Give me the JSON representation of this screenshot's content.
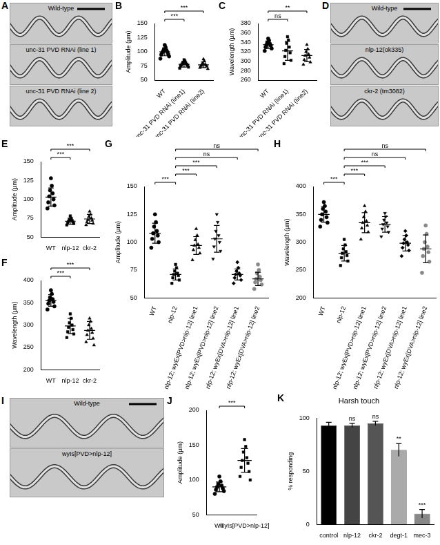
{
  "image_panels": [
    {
      "panel": "A",
      "labels": [
        "Wild-type",
        "unc-31 PVD RNAi (line 1)",
        "unc-31 PVD RNAi (line 2)"
      ]
    },
    {
      "panel": "D",
      "labels": [
        "Wild-type",
        "nlp-12(ok335)",
        "ckr-2 (tm3082)"
      ]
    },
    {
      "panel": "I",
      "labels": [
        "Wild-type",
        "wyIs[PVD>nlp-12]"
      ]
    }
  ],
  "chart_data": [
    {
      "panel": "B",
      "type": "dot_plot",
      "y_label": "Amplitude (µm)",
      "categories": [
        "WT",
        "unc-31 PVD RNAi (line1)",
        "unc-31 PVD RNAi (line2)"
      ],
      "ylim": [
        50,
        150
      ],
      "yticks": [
        50,
        75,
        100,
        125,
        150
      ],
      "points": [
        [
          112,
          108,
          104,
          103,
          101,
          100,
          98,
          96,
          95,
          92,
          88
        ],
        [
          86,
          84,
          81,
          80,
          79,
          78,
          77,
          76,
          75,
          73,
          71
        ],
        [
          87,
          84,
          80,
          78,
          77,
          76,
          75,
          74,
          72,
          70
        ]
      ],
      "means": [
        100,
        78,
        77
      ],
      "sds": [
        7,
        5,
        5
      ],
      "markers": [
        "circle",
        "square",
        "triangle"
      ],
      "colors": [
        "#000000",
        "#000000",
        "#000000"
      ],
      "comparisons": [
        {
          "from": 0,
          "to": 1,
          "label": "***"
        },
        {
          "from": 0,
          "to": 2,
          "label": "***"
        }
      ]
    },
    {
      "panel": "C",
      "type": "dot_plot",
      "y_label": "Wavelength (µm)",
      "categories": [
        "WT",
        "unc-31 PVD RNAi (line1)",
        "unc-31 PVD RNAi (line2)"
      ],
      "ylim": [
        260,
        380
      ],
      "yticks": [
        260,
        280,
        300,
        320,
        340,
        360,
        380
      ],
      "points": [
        [
          348,
          344,
          340,
          337,
          335,
          333,
          330,
          327,
          322
        ],
        [
          352,
          345,
          338,
          330,
          323,
          318,
          310,
          302,
          295
        ],
        [
          335,
          326,
          320,
          315,
          312,
          308,
          303,
          298,
          293
        ]
      ],
      "means": [
        335,
        322,
        312
      ],
      "sds": [
        8,
        20,
        13
      ],
      "markers": [
        "circle",
        "square",
        "triangle"
      ],
      "colors": [
        "#000000",
        "#000000",
        "#000000"
      ],
      "comparisons": [
        {
          "from": 0,
          "to": 1,
          "label": "ns"
        },
        {
          "from": 0,
          "to": 2,
          "label": "**"
        }
      ]
    },
    {
      "panel": "E",
      "type": "dot_plot",
      "y_label": "Amplitude (µm)",
      "categories": [
        "WT",
        "nlp-12",
        "ckr-2"
      ],
      "ylim": [
        50,
        150
      ],
      "yticks": [
        50,
        75,
        100,
        125,
        150
      ],
      "points": [
        [
          128,
          118,
          112,
          108,
          104,
          100,
          96,
          92,
          88
        ],
        [
          78,
          75,
          73,
          72,
          71,
          70,
          69,
          68,
          66
        ],
        [
          84,
          80,
          77,
          75,
          73,
          72,
          70,
          68,
          66
        ]
      ],
      "means": [
        103,
        71,
        74
      ],
      "sds": [
        12,
        4,
        6
      ],
      "markers": [
        "circle",
        "square",
        "triangle"
      ],
      "colors": [
        "#000000",
        "#000000",
        "#000000"
      ],
      "comparisons": [
        {
          "from": 0,
          "to": 1,
          "label": "***"
        },
        {
          "from": 0,
          "to": 2,
          "label": "***"
        }
      ]
    },
    {
      "panel": "F",
      "type": "dot_plot",
      "y_label": "Wavelength (µm)",
      "categories": [
        "WT",
        "nlp-12",
        "ckr-2"
      ],
      "ylim": [
        200,
        400
      ],
      "yticks": [
        200,
        250,
        300,
        350,
        400
      ],
      "points": [
        [
          378,
          370,
          362,
          358,
          355,
          352,
          348,
          342,
          335
        ],
        [
          325,
          315,
          305,
          300,
          295,
          290,
          285,
          280,
          272
        ],
        [
          315,
          308,
          300,
          292,
          288,
          283,
          278,
          270,
          262,
          255
        ]
      ],
      "means": [
        355,
        298,
        288
      ],
      "sds": [
        13,
        17,
        20
      ],
      "markers": [
        "circle",
        "square",
        "triangle"
      ],
      "colors": [
        "#000000",
        "#000000",
        "#000000"
      ],
      "comparisons": [
        {
          "from": 0,
          "to": 1,
          "label": "***"
        },
        {
          "from": 0,
          "to": 2,
          "label": "***"
        }
      ]
    },
    {
      "panel": "G",
      "type": "dot_plot",
      "y_label": "Amplitude (µm)",
      "categories": [
        "WT",
        "nlp-12",
        "nlp-12; wyEx[PVD>nlp-12] line1",
        "nlp-12; wyEx[PVD>nlp-12] line2",
        "nlp-12; wyEx[DVA>nlp-12] line1",
        "nlp-12; wyEx[DVA>nlp-12] line2"
      ],
      "ylim": [
        50,
        150
      ],
      "yticks": [
        50,
        75,
        100,
        125,
        150
      ],
      "points": [
        [
          125,
          118,
          114,
          110,
          108,
          106,
          103,
          100,
          95
        ],
        [
          80,
          77,
          74,
          72,
          71,
          70,
          68,
          66,
          63
        ],
        [
          112,
          106,
          102,
          98,
          97,
          95,
          93,
          90,
          84
        ],
        [
          125,
          118,
          110,
          106,
          103,
          100,
          96,
          92,
          85
        ],
        [
          82,
          77,
          74,
          72,
          71,
          70,
          68,
          66,
          63
        ],
        [
          80,
          75,
          72,
          69,
          67,
          66,
          64,
          62,
          58
        ]
      ],
      "means": [
        108,
        71,
        97,
        103,
        71,
        67
      ],
      "sds": [
        9,
        5,
        8,
        12,
        5,
        6
      ],
      "markers": [
        "circle",
        "square",
        "triangle",
        "triangle_down",
        "diamond",
        "circle"
      ],
      "colors": [
        "#000000",
        "#000000",
        "#000000",
        "#000000",
        "#000000",
        "#888888"
      ],
      "comparisons": [
        {
          "from": 0,
          "to": 1,
          "label": "***"
        },
        {
          "from": 1,
          "to": 2,
          "label": "***"
        },
        {
          "from": 1,
          "to": 3,
          "label": "***"
        },
        {
          "from": 1,
          "to": 4,
          "label": "ns"
        },
        {
          "from": 1,
          "to": 5,
          "label": "ns"
        }
      ]
    },
    {
      "panel": "H",
      "type": "dot_plot",
      "y_label": "Wavelength (µm)",
      "categories": [
        "WT",
        "nlp-12",
        "nlp-12; wyEx[PVD>nlp-12] line1",
        "nlp-12; wyEx[PVD>nlp-12] line2",
        "nlp-12; wyEx[DVA>nlp-12] line1",
        "nlp-12; wyEx[DVA>nlp-12] line2"
      ],
      "ylim": [
        200,
        400
      ],
      "yticks": [
        200,
        250,
        300,
        350,
        400
      ],
      "points": [
        [
          372,
          365,
          360,
          355,
          350,
          345,
          340,
          335,
          328
        ],
        [
          305,
          295,
          288,
          283,
          280,
          276,
          272,
          266,
          258
        ],
        [
          365,
          355,
          345,
          338,
          335,
          330,
          325,
          318,
          305
        ],
        [
          352,
          346,
          340,
          335,
          332,
          328,
          324,
          318,
          310
        ],
        [
          320,
          312,
          305,
          300,
          298,
          295,
          290,
          285,
          275
        ],
        [
          330,
          315,
          300,
          292,
          288,
          282,
          275,
          265,
          245
        ]
      ],
      "means": [
        350,
        280,
        335,
        332,
        298,
        288
      ],
      "sds": [
        14,
        14,
        18,
        14,
        14,
        25
      ],
      "markers": [
        "circle",
        "square",
        "triangle",
        "triangle_down",
        "diamond",
        "circle"
      ],
      "colors": [
        "#000000",
        "#000000",
        "#000000",
        "#000000",
        "#000000",
        "#888888"
      ],
      "comparisons": [
        {
          "from": 0,
          "to": 1,
          "label": "***"
        },
        {
          "from": 1,
          "to": 2,
          "label": "***"
        },
        {
          "from": 1,
          "to": 3,
          "label": "***"
        },
        {
          "from": 1,
          "to": 4,
          "label": "ns"
        },
        {
          "from": 1,
          "to": 5,
          "label": "ns"
        }
      ]
    },
    {
      "panel": "J",
      "type": "dot_plot",
      "y_label": "Amplitude (µm)",
      "categories": [
        "WT",
        "wyIs[PVD>nlp-12]"
      ],
      "ylim": [
        50,
        200
      ],
      "yticks": [
        50,
        100,
        150,
        200
      ],
      "points": [
        [
          105,
          98,
          94,
          92,
          90,
          88,
          86,
          84,
          80
        ],
        [
          158,
          148,
          140,
          132,
          128,
          124,
          118,
          112,
          105,
          100
        ]
      ],
      "means": [
        90,
        128
      ],
      "sds": [
        7,
        17
      ],
      "markers": [
        "circle",
        "square"
      ],
      "colors": [
        "#000000",
        "#000000"
      ],
      "comparisons": [
        {
          "from": 0,
          "to": 1,
          "label": "***"
        }
      ]
    },
    {
      "panel": "K",
      "type": "bar",
      "title": "Harsh touch",
      "y_label": "% responding",
      "categories": [
        "control",
        "nlp-12",
        "ckr-2",
        "degt-1",
        "mec-3"
      ],
      "values": [
        93,
        93,
        95,
        70,
        10
      ],
      "errors": [
        3,
        2,
        2,
        6,
        4
      ],
      "significance": [
        null,
        "ns",
        "ns",
        "**",
        "***"
      ],
      "colors": [
        "#000000",
        "#444444",
        "#555555",
        "#aaaaaa",
        "#888888"
      ],
      "ylim": [
        0,
        100
      ],
      "yticks": [
        0,
        50,
        100
      ]
    }
  ]
}
